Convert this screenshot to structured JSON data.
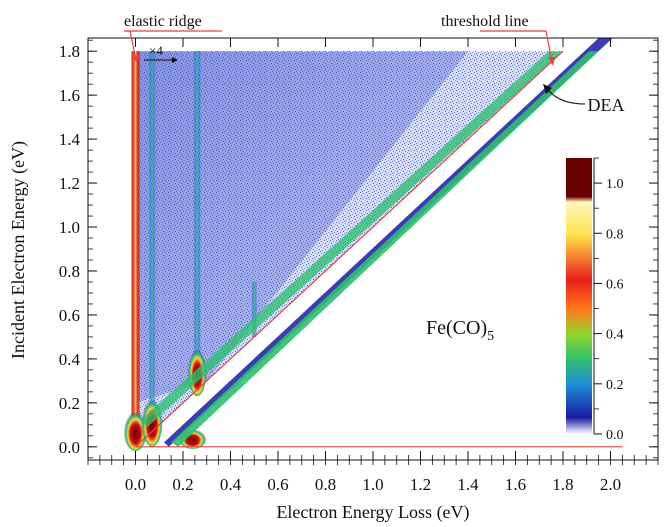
{
  "chart_data": {
    "type": "heatmap",
    "title": "",
    "xlabel": "Electron Energy Loss (eV)",
    "ylabel": "Incident Electron Energy (eV)",
    "xlim": [
      -0.2,
      2.2
    ],
    "ylim": [
      -0.06,
      1.86
    ],
    "x_ticks": [
      0.0,
      0.2,
      0.4,
      0.6,
      0.8,
      1.0,
      1.2,
      1.4,
      1.6,
      1.8,
      2.0
    ],
    "x_tick_labels": [
      "0.0",
      "0.2",
      "0.4",
      "0.6",
      "0.8",
      "1.0",
      "1.2",
      "1.4",
      "1.6",
      "1.8",
      "2.0"
    ],
    "y_ticks": [
      0.0,
      0.2,
      0.4,
      0.6,
      0.8,
      1.0,
      1.2,
      1.4,
      1.6,
      1.8
    ],
    "y_tick_labels": [
      "0.0",
      "0.2",
      "0.4",
      "0.6",
      "0.8",
      "1.0",
      "1.2",
      "1.4",
      "1.6",
      "1.8"
    ],
    "grid": false,
    "colorbar": {
      "range": [
        0.0,
        1.1
      ],
      "ticks": [
        0.0,
        0.2,
        0.4,
        0.6,
        0.8,
        1.0
      ],
      "tick_labels": [
        "0.0",
        "0.2",
        "0.4",
        "0.6",
        "0.8",
        "1.0"
      ],
      "colors": [
        "#ffffff",
        "#1a1aa6",
        "#1f8fd6",
        "#2fbf6f",
        "#8fd62a",
        "#ff7a1a",
        "#e8201a",
        "#ffe24a",
        "#fff8c0",
        "#6b0000"
      ]
    },
    "features": {
      "vibrational_loss_columns_eV": [
        0.0,
        0.07,
        0.26,
        0.5
      ],
      "threshold_line": {
        "from": [
          0.0,
          0.0
        ],
        "to": [
          1.8,
          1.8
        ],
        "color": "#e8413f"
      },
      "baseline": {
        "from": [
          0.0,
          0.0
        ],
        "to": [
          2.05,
          0.0
        ],
        "color": "#e8413f"
      },
      "dea_band": {
        "from": [
          0.14,
          0.0
        ],
        "to": [
          2.05,
          1.9
        ]
      }
    },
    "annotations": {
      "elastic_ridge": "elastic ridge",
      "threshold_line": "threshold line",
      "scale_factor": "×4",
      "dea": "DEA",
      "molecule_base": "Fe",
      "molecule_group": "(CO)",
      "molecule_subscript": "5"
    }
  }
}
